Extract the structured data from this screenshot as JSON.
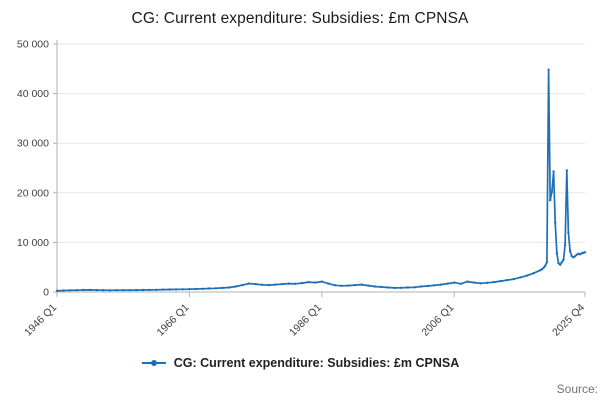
{
  "page": {
    "title": "CG: Current expenditure: Subsidies: £m CPNSA",
    "source_label": "Source:"
  },
  "legend": {
    "label": "CG: Current expenditure: Subsidies: £m CPNSA"
  },
  "chart_data": {
    "type": "line",
    "title": "CG: Current expenditure: Subsidies: £m CPNSA",
    "series_name": "CG: Current expenditure: Subsidies: £m CPNSA",
    "units": "£m",
    "color": "#1d70b8",
    "grid": true,
    "legend_position": "bottom",
    "xlim": [
      1946.0,
      2025.75
    ],
    "ylim": [
      0,
      50000
    ],
    "yticks": [
      {
        "v": 0,
        "label": "0"
      },
      {
        "v": 10000,
        "label": "10 000"
      },
      {
        "v": 20000,
        "label": "20 000"
      },
      {
        "v": 30000,
        "label": "30 000"
      },
      {
        "v": 40000,
        "label": "40 000"
      },
      {
        "v": 50000,
        "label": "50 000"
      }
    ],
    "xticks": [
      {
        "x": 1946.0,
        "label": "1946 Q1"
      },
      {
        "x": 1966.0,
        "label": "1966 Q1"
      },
      {
        "x": 1986.0,
        "label": "1986 Q1"
      },
      {
        "x": 2006.0,
        "label": "2006 Q1"
      },
      {
        "x": 2025.75,
        "label": "2025 Q4"
      }
    ],
    "points": [
      [
        1946,
        250
      ],
      [
        1947,
        300
      ],
      [
        1948,
        340
      ],
      [
        1949,
        370
      ],
      [
        1950,
        400
      ],
      [
        1951,
        420
      ],
      [
        1952,
        390
      ],
      [
        1953,
        360
      ],
      [
        1954,
        340
      ],
      [
        1955,
        355
      ],
      [
        1956,
        370
      ],
      [
        1957,
        360
      ],
      [
        1958,
        380
      ],
      [
        1959,
        395
      ],
      [
        1960,
        420
      ],
      [
        1961,
        450
      ],
      [
        1962,
        475
      ],
      [
        1963,
        500
      ],
      [
        1964,
        520
      ],
      [
        1965,
        540
      ],
      [
        1966,
        560
      ],
      [
        1967,
        600
      ],
      [
        1968,
        650
      ],
      [
        1969,
        700
      ],
      [
        1970,
        750
      ],
      [
        1971,
        820
      ],
      [
        1972,
        900
      ],
      [
        1973,
        1100
      ],
      [
        1974,
        1400
      ],
      [
        1975,
        1700
      ],
      [
        1976,
        1600
      ],
      [
        1977,
        1450
      ],
      [
        1978,
        1400
      ],
      [
        1979,
        1500
      ],
      [
        1980,
        1600
      ],
      [
        1981,
        1700
      ],
      [
        1982,
        1650
      ],
      [
        1983,
        1800
      ],
      [
        1984,
        2000
      ],
      [
        1985,
        1900
      ],
      [
        1986,
        2100
      ],
      [
        1987,
        1700
      ],
      [
        1988,
        1350
      ],
      [
        1989,
        1250
      ],
      [
        1990,
        1300
      ],
      [
        1991,
        1400
      ],
      [
        1992,
        1500
      ],
      [
        1993,
        1300
      ],
      [
        1994,
        1100
      ],
      [
        1995,
        1000
      ],
      [
        1996,
        900
      ],
      [
        1997,
        820
      ],
      [
        1998,
        850
      ],
      [
        1999,
        900
      ],
      [
        2000,
        950
      ],
      [
        2001,
        1100
      ],
      [
        2002,
        1200
      ],
      [
        2003,
        1350
      ],
      [
        2004,
        1500
      ],
      [
        2005,
        1700
      ],
      [
        2006,
        1900
      ],
      [
        2007,
        1650
      ],
      [
        2008,
        2100
      ],
      [
        2009,
        1900
      ],
      [
        2010,
        1750
      ],
      [
        2011,
        1850
      ],
      [
        2012,
        2000
      ],
      [
        2013,
        2200
      ],
      [
        2014,
        2400
      ],
      [
        2015,
        2600
      ],
      [
        2016,
        2950
      ],
      [
        2017,
        3300
      ],
      [
        2018,
        3800
      ],
      [
        2019.0,
        4400
      ],
      [
        2019.25,
        4600
      ],
      [
        2019.5,
        4900
      ],
      [
        2019.75,
        5300
      ],
      [
        2020.0,
        6000
      ],
      [
        2020.25,
        44800
      ],
      [
        2020.5,
        18500
      ],
      [
        2020.75,
        20200
      ],
      [
        2021.0,
        24300
      ],
      [
        2021.25,
        14000
      ],
      [
        2021.5,
        7800
      ],
      [
        2021.75,
        5800
      ],
      [
        2022.0,
        5500
      ],
      [
        2022.25,
        6000
      ],
      [
        2022.5,
        6500
      ],
      [
        2022.75,
        9500
      ],
      [
        2023.0,
        24500
      ],
      [
        2023.25,
        12000
      ],
      [
        2023.5,
        8200
      ],
      [
        2023.75,
        7200
      ],
      [
        2024.0,
        7000
      ],
      [
        2024.25,
        7200
      ],
      [
        2024.5,
        7500
      ],
      [
        2024.75,
        7700
      ],
      [
        2025.0,
        7600
      ],
      [
        2025.25,
        7800
      ],
      [
        2025.5,
        7900
      ],
      [
        2025.75,
        8000
      ]
    ]
  }
}
